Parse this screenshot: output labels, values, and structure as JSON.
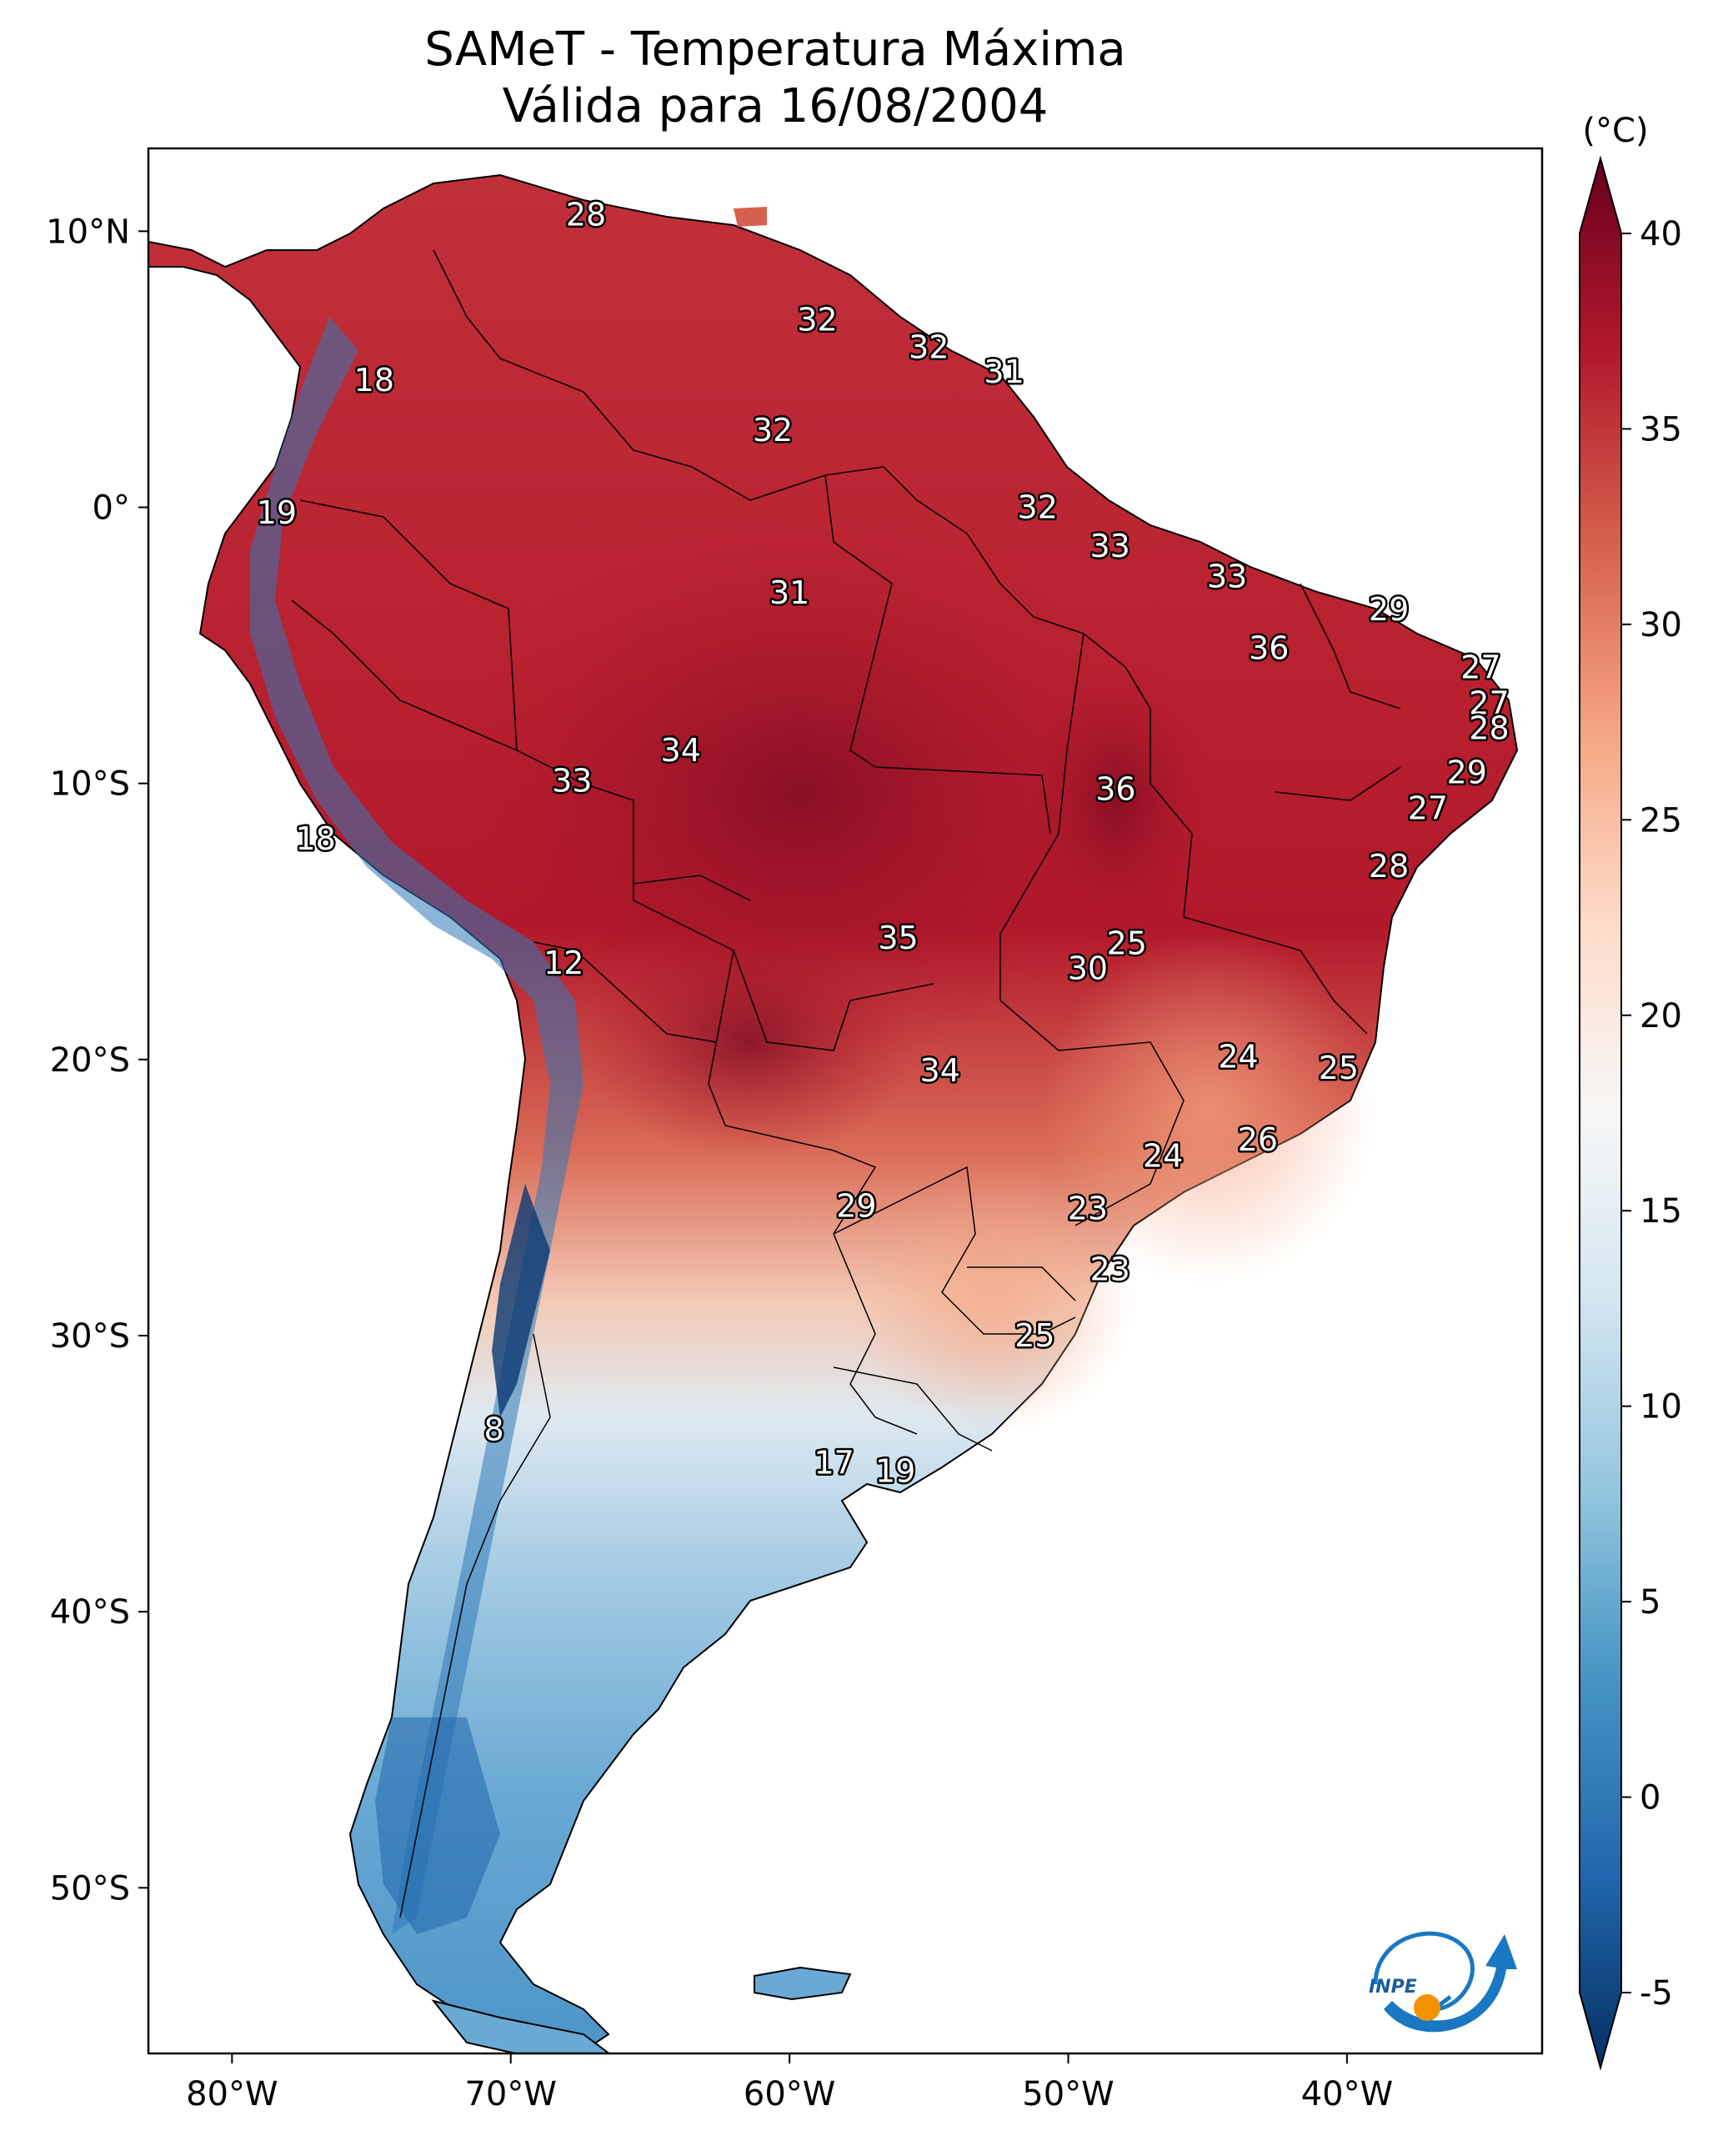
{
  "title": {
    "line1": "SAMeT - Temperatura Máxima",
    "line2": "Válida para 16/08/2004"
  },
  "map": {
    "lon_range": [
      -83,
      -33
    ],
    "lat_range": [
      -56,
      13
    ],
    "lon_ticks": [
      {
        "value": -80,
        "label": "80°W"
      },
      {
        "value": -70,
        "label": "70°W"
      },
      {
        "value": -60,
        "label": "60°W"
      },
      {
        "value": -50,
        "label": "50°W"
      },
      {
        "value": -40,
        "label": "40°W"
      }
    ],
    "lat_ticks": [
      {
        "value": 10,
        "label": "10°N"
      },
      {
        "value": 0,
        "label": "0°"
      },
      {
        "value": -10,
        "label": "10°S"
      },
      {
        "value": -20,
        "label": "20°S"
      },
      {
        "value": -30,
        "label": "30°S"
      },
      {
        "value": -40,
        "label": "40°S"
      },
      {
        "value": -50,
        "label": "50°S"
      }
    ],
    "city_values": [
      {
        "lon": -67.3,
        "lat": 10.6,
        "value": "28"
      },
      {
        "lon": -74.9,
        "lat": 4.6,
        "value": "18"
      },
      {
        "lon": -78.4,
        "lat": -0.2,
        "value": "19"
      },
      {
        "lon": -59.0,
        "lat": 6.8,
        "value": "32"
      },
      {
        "lon": -55.0,
        "lat": 5.8,
        "value": "32"
      },
      {
        "lon": -52.3,
        "lat": 4.9,
        "value": "31"
      },
      {
        "lon": -60.6,
        "lat": 2.8,
        "value": "32"
      },
      {
        "lon": -51.1,
        "lat": 0.0,
        "value": "32"
      },
      {
        "lon": -48.5,
        "lat": -1.4,
        "value": "33"
      },
      {
        "lon": -44.3,
        "lat": -2.5,
        "value": "33"
      },
      {
        "lon": -60.0,
        "lat": -3.1,
        "value": "31"
      },
      {
        "lon": -38.5,
        "lat": -3.7,
        "value": "29"
      },
      {
        "lon": -42.8,
        "lat": -5.1,
        "value": "36"
      },
      {
        "lon": -35.2,
        "lat": -5.8,
        "value": "27"
      },
      {
        "lon": -34.9,
        "lat": -7.1,
        "value": "27"
      },
      {
        "lon": -34.9,
        "lat": -8.0,
        "value": "28"
      },
      {
        "lon": -35.7,
        "lat": -9.6,
        "value": "29"
      },
      {
        "lon": -63.9,
        "lat": -8.8,
        "value": "34"
      },
      {
        "lon": -67.8,
        "lat": -9.9,
        "value": "33"
      },
      {
        "lon": -48.3,
        "lat": -10.2,
        "value": "36"
      },
      {
        "lon": -37.1,
        "lat": -10.9,
        "value": "27"
      },
      {
        "lon": -77.0,
        "lat": -12.0,
        "value": "18"
      },
      {
        "lon": -38.5,
        "lat": -13.0,
        "value": "28"
      },
      {
        "lon": -56.1,
        "lat": -15.6,
        "value": "35"
      },
      {
        "lon": -47.9,
        "lat": -15.8,
        "value": "25"
      },
      {
        "lon": -49.3,
        "lat": -16.7,
        "value": "30"
      },
      {
        "lon": -68.1,
        "lat": -16.5,
        "value": "12"
      },
      {
        "lon": -43.9,
        "lat": -19.9,
        "value": "24"
      },
      {
        "lon": -40.3,
        "lat": -20.3,
        "value": "25"
      },
      {
        "lon": -54.6,
        "lat": -20.4,
        "value": "34"
      },
      {
        "lon": -43.2,
        "lat": -22.9,
        "value": "26"
      },
      {
        "lon": -46.6,
        "lat": -23.5,
        "value": "24"
      },
      {
        "lon": -57.6,
        "lat": -25.3,
        "value": "29"
      },
      {
        "lon": -49.3,
        "lat": -25.4,
        "value": "23"
      },
      {
        "lon": -48.5,
        "lat": -27.6,
        "value": "23"
      },
      {
        "lon": -51.2,
        "lat": -30.0,
        "value": "25"
      },
      {
        "lon": -70.6,
        "lat": -33.4,
        "value": "8"
      },
      {
        "lon": -58.4,
        "lat": -34.6,
        "value": "17"
      },
      {
        "lon": -56.2,
        "lat": -34.9,
        "value": "19"
      }
    ]
  },
  "colorbar": {
    "unit": "(°C)",
    "min": -5,
    "max": 40,
    "ticks": [
      {
        "value": 40,
        "label": "40"
      },
      {
        "value": 35,
        "label": "35"
      },
      {
        "value": 30,
        "label": "30"
      },
      {
        "value": 25,
        "label": "25"
      },
      {
        "value": 20,
        "label": "20"
      },
      {
        "value": 15,
        "label": "15"
      },
      {
        "value": 10,
        "label": "10"
      },
      {
        "value": 5,
        "label": "5"
      },
      {
        "value": 0,
        "label": "0"
      },
      {
        "value": -5,
        "label": "-5"
      }
    ],
    "colors": [
      "#053061",
      "#2166ac",
      "#4393c3",
      "#92c5de",
      "#d1e5f0",
      "#f7f7f7",
      "#fddbc7",
      "#f4a582",
      "#d6604d",
      "#b2182b",
      "#67001f"
    ]
  },
  "logo": {
    "text": "INPE",
    "colors": {
      "blue": "#1a78c2",
      "orange": "#f39200"
    }
  }
}
